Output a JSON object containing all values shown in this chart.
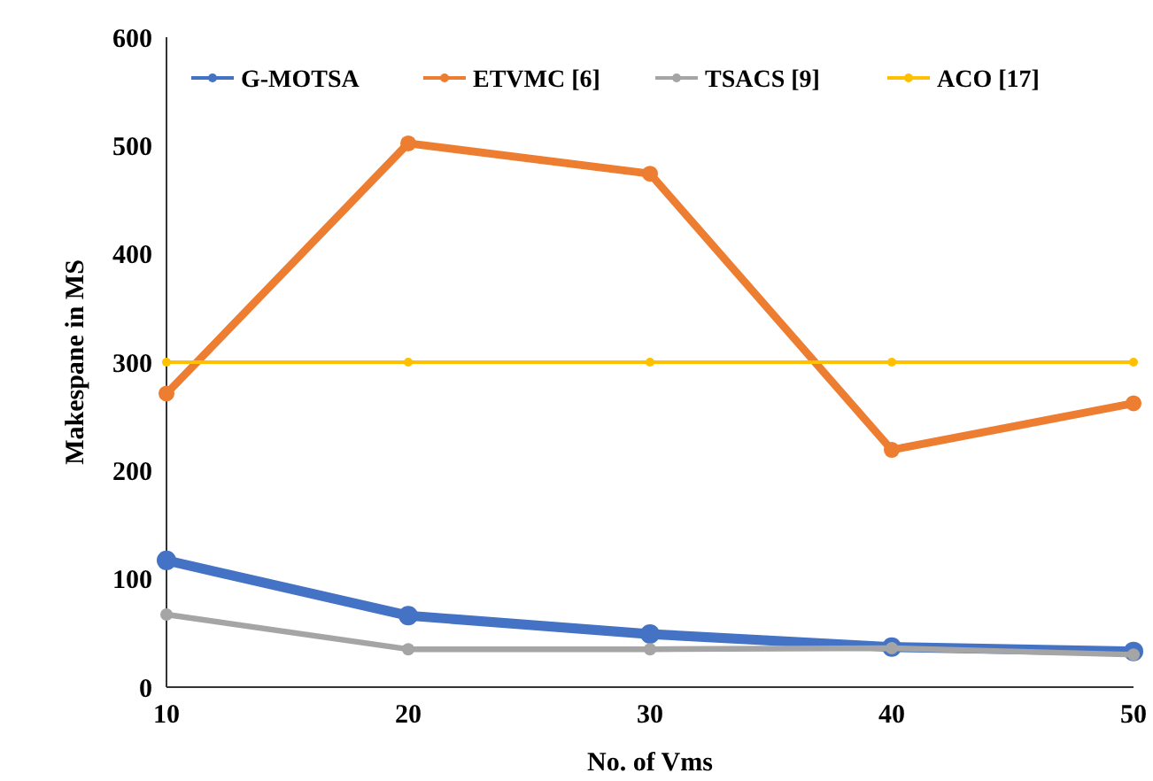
{
  "chart_data": {
    "type": "line",
    "xlabel": "No. of Vms",
    "ylabel": "Makespane in MS",
    "x": [
      10,
      20,
      30,
      40,
      50
    ],
    "xlim": [
      10,
      50
    ],
    "xticks": [
      10,
      20,
      30,
      40,
      50
    ],
    "ylim": [
      0,
      600
    ],
    "yticks": [
      0,
      100,
      200,
      300,
      400,
      500,
      600
    ],
    "grid": false,
    "legend": "top",
    "marker": "circle",
    "line_style": "solid",
    "series": [
      {
        "name": "G-MOTSA",
        "color": "#4472c4",
        "values": [
          117,
          66,
          49,
          37,
          33
        ]
      },
      {
        "name": "ETVMC [6]",
        "color": "#ed7d31",
        "values": [
          271,
          502,
          474,
          219,
          262
        ]
      },
      {
        "name": "TSACS [9]",
        "color": "#a5a5a5",
        "values": [
          67,
          35,
          35,
          36,
          30
        ]
      },
      {
        "name": "ACO [17]",
        "color": "#ffc000",
        "values": [
          300,
          300,
          300,
          300,
          300
        ]
      }
    ]
  }
}
